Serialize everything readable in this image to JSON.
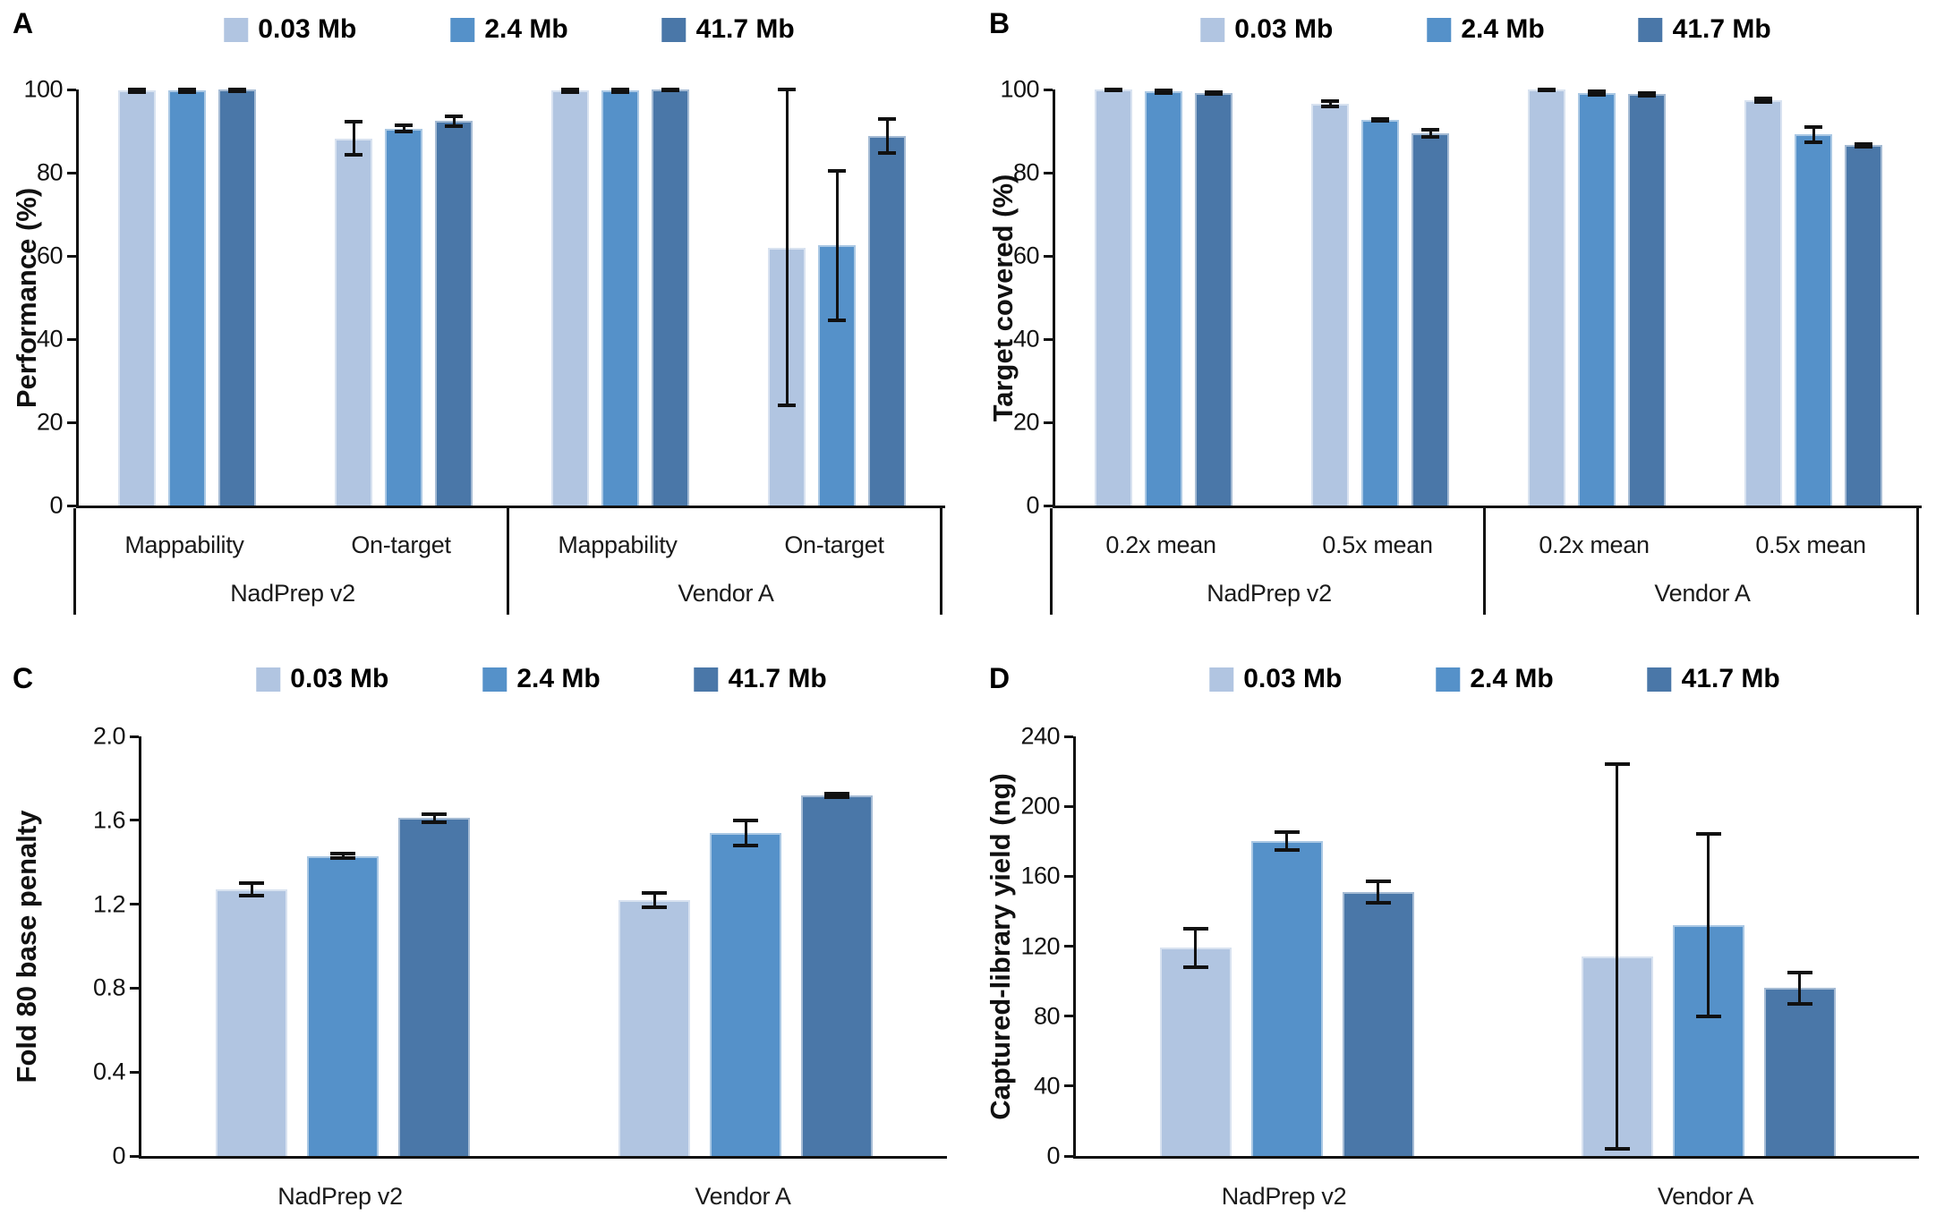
{
  "chart_data": [
    {
      "type": "bar",
      "panel_label": "A",
      "ylabel": "Performance (%)",
      "ylim": [
        0,
        100
      ],
      "ytick_values": [
        0,
        20,
        40,
        60,
        80,
        100
      ],
      "ytick_labels": [
        "0",
        "20",
        "40",
        "60",
        "80",
        "100"
      ],
      "grid": false,
      "legend_position": "top",
      "groups": [
        {
          "label": "NadPrep v2",
          "categories": [
            "Mappability",
            "On-target"
          ]
        },
        {
          "label": "Vendor A",
          "categories": [
            "Mappability",
            "On-target"
          ]
        }
      ],
      "series": [
        {
          "name": "0.03 Mb",
          "color": "#B1C5E1",
          "values": [
            99.7,
            88.2,
            99.7,
            62.0
          ],
          "errors": [
            0.4,
            4.0,
            0.4,
            38.0
          ]
        },
        {
          "name": "2.4 Mb",
          "color": "#5591C9",
          "values": [
            99.7,
            90.6,
            99.7,
            62.5
          ],
          "errors": [
            0.4,
            0.8,
            0.4,
            18.0
          ]
        },
        {
          "name": "41.7 Mb",
          "color": "#4A77A8",
          "values": [
            99.9,
            92.4,
            100.0,
            88.8
          ],
          "errors": [
            0.3,
            1.2,
            0.2,
            4.0
          ]
        }
      ]
    },
    {
      "type": "bar",
      "panel_label": "B",
      "ylabel": "Target covered (%)",
      "ylim": [
        0,
        100
      ],
      "ytick_values": [
        0,
        20,
        40,
        60,
        80,
        100
      ],
      "ytick_labels": [
        "0",
        "20",
        "40",
        "60",
        "80",
        "100"
      ],
      "grid": false,
      "legend_position": "top",
      "groups": [
        {
          "label": "NadPrep v2",
          "categories": [
            "0.2x mean",
            "0.5x mean"
          ]
        },
        {
          "label": "Vendor A",
          "categories": [
            "0.2x mean",
            "0.5x mean"
          ]
        }
      ],
      "series": [
        {
          "name": "0.03 Mb",
          "color": "#B1C5E1",
          "values": [
            99.9,
            96.6,
            99.9,
            97.4
          ],
          "errors": [
            0.2,
            0.6,
            0.2,
            0.4
          ]
        },
        {
          "name": "2.4 Mb",
          "color": "#5591C9",
          "values": [
            99.5,
            92.7,
            99.2,
            89.2
          ],
          "errors": [
            0.3,
            0.3,
            0.4,
            1.8
          ]
        },
        {
          "name": "41.7 Mb",
          "color": "#4A77A8",
          "values": [
            99.2,
            89.5,
            98.9,
            86.6
          ],
          "errors": [
            0.2,
            0.9,
            0.3,
            0.3
          ]
        }
      ]
    },
    {
      "type": "bar",
      "panel_label": "C",
      "ylabel": "Fold 80 base penalty",
      "ylim": [
        0,
        2.0
      ],
      "ytick_values": [
        0,
        0.4,
        0.8,
        1.2,
        1.6,
        2.0
      ],
      "ytick_labels": [
        "0",
        "0.4",
        "0.8",
        "1.2",
        "1.6",
        "2.0"
      ],
      "grid": false,
      "legend_position": "top",
      "groups": [
        {
          "label": "NadPrep v2",
          "categories": []
        },
        {
          "label": "Vendor A",
          "categories": []
        }
      ],
      "series": [
        {
          "name": "0.03 Mb",
          "color": "#B1C5E1",
          "values": [
            1.27,
            1.22
          ],
          "errors": [
            0.03,
            0.035
          ]
        },
        {
          "name": "2.4 Mb",
          "color": "#5591C9",
          "values": [
            1.43,
            1.54
          ],
          "errors": [
            0.012,
            0.06
          ]
        },
        {
          "name": "41.7 Mb",
          "color": "#4A77A8",
          "values": [
            1.61,
            1.72
          ],
          "errors": [
            0.02,
            0.008
          ]
        }
      ]
    },
    {
      "type": "bar",
      "panel_label": "D",
      "ylabel": "Captured-library yield (ng)",
      "ylim": [
        0,
        240
      ],
      "ytick_values": [
        0,
        40,
        80,
        120,
        160,
        200,
        240
      ],
      "ytick_labels": [
        "0",
        "40",
        "80",
        "120",
        "160",
        "200",
        "240"
      ],
      "grid": false,
      "legend_position": "top",
      "groups": [
        {
          "label": "NadPrep v2",
          "categories": []
        },
        {
          "label": "Vendor A",
          "categories": []
        }
      ],
      "series": [
        {
          "name": "0.03 Mb",
          "color": "#B1C5E1",
          "values": [
            119,
            114
          ],
          "errors": [
            11,
            110
          ]
        },
        {
          "name": "2.4 Mb",
          "color": "#5591C9",
          "values": [
            180,
            132
          ],
          "errors": [
            5,
            52
          ]
        },
        {
          "name": "41.7 Mb",
          "color": "#4A77A8",
          "values": [
            151,
            96
          ],
          "errors": [
            6,
            9
          ]
        }
      ]
    }
  ]
}
